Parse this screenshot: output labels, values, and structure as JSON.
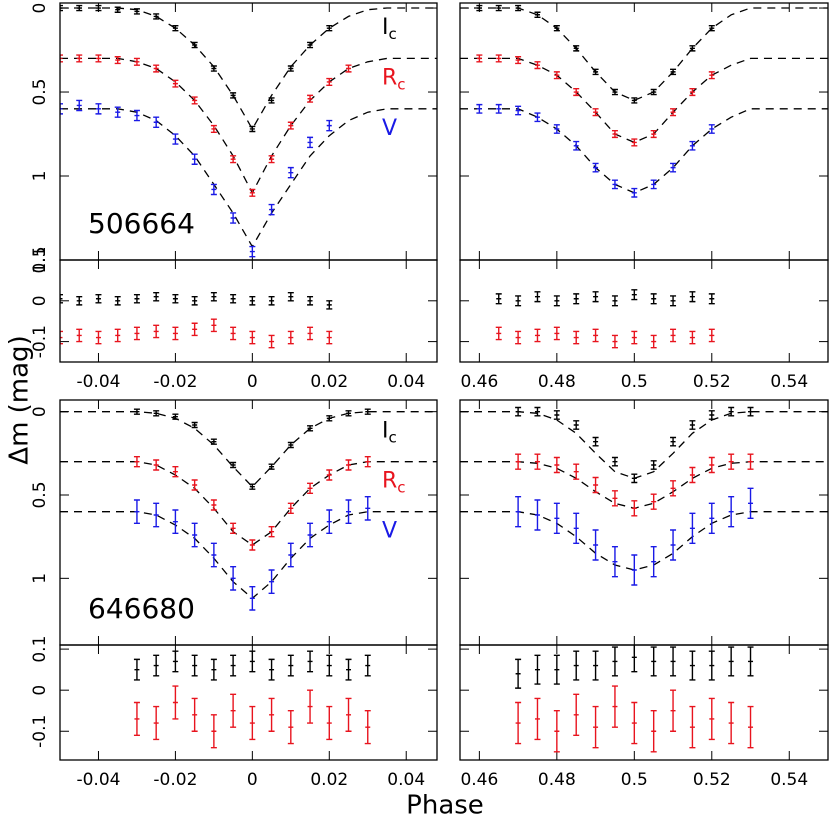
{
  "chart_data": {
    "type": "errorbar",
    "xlabel": "Phase",
    "ylabel": "Δm (mag)",
    "bands": [
      {
        "name": "I",
        "sub": "c",
        "color": "#000000"
      },
      {
        "name": "R",
        "sub": "c",
        "color": "#e8141e"
      },
      {
        "name": "V",
        "sub": null,
        "color": "#1a1ae6"
      }
    ],
    "panels": [
      {
        "label": "506664",
        "legend": true,
        "xlim": [
          -0.05,
          0.048
        ],
        "xticks": [
          -0.04,
          -0.02,
          0,
          0.02,
          0.04
        ],
        "x": [
          -0.05,
          -0.045,
          -0.04,
          -0.035,
          -0.03,
          -0.025,
          -0.02,
          -0.015,
          -0.01,
          -0.005,
          0,
          0.005,
          0.01,
          0.015,
          0.02,
          0.025
        ],
        "model_x": [
          -0.05,
          -0.035,
          -0.03,
          -0.025,
          -0.02,
          -0.015,
          -0.01,
          -0.005,
          0,
          0.005,
          0.01,
          0.015,
          0.02,
          0.025,
          0.03,
          0.035,
          0.048
        ],
        "main": {
          "ylim": [
            1.5,
            -0.03
          ],
          "yticks": [
            0,
            0.5,
            1,
            1.5
          ],
          "series": [
            {
              "values": [
                0,
                0,
                0,
                0.01,
                0.02,
                0.05,
                0.12,
                0.22,
                0.36,
                0.52,
                0.72,
                0.55,
                0.36,
                0.22,
                0.12,
                null
              ],
              "error": 0.015,
              "model": [
                0,
                0,
                0.01,
                0.05,
                0.12,
                0.22,
                0.35,
                0.52,
                0.72,
                0.52,
                0.35,
                0.22,
                0.12,
                0.05,
                0.01,
                0,
                0
              ]
            },
            {
              "values": [
                0.3,
                0.3,
                0.3,
                0.31,
                0.32,
                0.36,
                0.45,
                0.55,
                0.72,
                0.9,
                1.1,
                0.9,
                0.7,
                0.54,
                0.44,
                0.36
              ],
              "error": 0.02,
              "model": [
                0.3,
                0.3,
                0.32,
                0.36,
                0.44,
                0.55,
                0.7,
                0.88,
                1.1,
                0.88,
                0.7,
                0.55,
                0.44,
                0.36,
                0.32,
                0.3,
                0.3
              ]
            },
            {
              "values": [
                0.6,
                0.58,
                0.6,
                0.62,
                0.64,
                0.68,
                0.78,
                0.9,
                1.08,
                1.25,
                1.45,
                1.2,
                0.98,
                0.8,
                0.7,
                null
              ],
              "error": 0.03,
              "model": [
                0.6,
                0.6,
                0.62,
                0.67,
                0.76,
                0.88,
                1.05,
                1.22,
                1.42,
                1.22,
                1.05,
                0.88,
                0.76,
                0.67,
                0.62,
                0.6,
                0.6
              ]
            }
          ]
        },
        "residuals": {
          "ylim": [
            -0.15,
            0.1
          ],
          "yticks": [
            0.1,
            0,
            -0.1
          ],
          "series": [
            {
              "values": [
                0.005,
                0,
                0.005,
                0,
                0.005,
                0.01,
                0.005,
                0,
                0.01,
                0.005,
                0,
                0,
                0.01,
                0,
                -0.01,
                null
              ],
              "error": 0.01
            },
            {
              "values": [
                -0.09,
                -0.085,
                -0.09,
                -0.085,
                -0.08,
                -0.075,
                -0.08,
                -0.07,
                -0.06,
                -0.08,
                -0.09,
                -0.1,
                -0.09,
                -0.08,
                -0.09,
                null
              ],
              "error": 0.015
            }
          ]
        }
      },
      {
        "label": null,
        "legend": false,
        "xlim": [
          0.455,
          0.55
        ],
        "xticks": [
          0.46,
          0.48,
          0.5,
          0.52,
          0.54
        ],
        "x": [
          0.46,
          0.465,
          0.47,
          0.475,
          0.48,
          0.485,
          0.49,
          0.495,
          0.5,
          0.505,
          0.51,
          0.515,
          0.52,
          0.525
        ],
        "model_x": [
          0.455,
          0.47,
          0.475,
          0.48,
          0.485,
          0.49,
          0.495,
          0.5,
          0.505,
          0.51,
          0.515,
          0.52,
          0.525,
          0.53,
          0.55
        ],
        "main": {
          "ylim": [
            1.5,
            -0.03
          ],
          "yticks": [
            0,
            0.5,
            1,
            1.5
          ],
          "series": [
            {
              "values": [
                0,
                0,
                0,
                0.04,
                0.12,
                0.24,
                0.38,
                0.5,
                0.55,
                0.5,
                0.38,
                0.24,
                0.12,
                null
              ],
              "error": 0.015,
              "model": [
                0,
                0,
                0.04,
                0.12,
                0.24,
                0.38,
                0.5,
                0.55,
                0.5,
                0.38,
                0.24,
                0.12,
                0.04,
                0,
                0
              ]
            },
            {
              "values": [
                0.3,
                0.3,
                0.31,
                0.34,
                0.4,
                0.5,
                0.62,
                0.75,
                0.8,
                0.75,
                0.62,
                0.5,
                0.4,
                null
              ],
              "error": 0.02,
              "model": [
                0.3,
                0.3,
                0.34,
                0.4,
                0.5,
                0.62,
                0.75,
                0.8,
                0.75,
                0.62,
                0.5,
                0.4,
                0.34,
                0.3,
                0.3
              ]
            },
            {
              "values": [
                0.6,
                0.6,
                0.61,
                0.65,
                0.72,
                0.82,
                0.95,
                1.05,
                1.1,
                1.05,
                0.95,
                0.82,
                0.72,
                null
              ],
              "error": 0.025,
              "model": [
                0.6,
                0.6,
                0.65,
                0.72,
                0.82,
                0.95,
                1.05,
                1.1,
                1.05,
                0.95,
                0.82,
                0.72,
                0.65,
                0.6,
                0.6
              ]
            }
          ]
        },
        "residuals": {
          "ylim": [
            -0.15,
            0.1
          ],
          "yticks": [
            0.1,
            0,
            -0.1
          ],
          "series": [
            {
              "values": [
                null,
                0.005,
                0,
                0.01,
                0,
                0.005,
                0.01,
                0,
                0.015,
                0.005,
                0,
                0.01,
                0.005,
                null
              ],
              "error": 0.012
            },
            {
              "values": [
                null,
                -0.08,
                -0.09,
                -0.085,
                -0.08,
                -0.09,
                -0.085,
                -0.1,
                -0.09,
                -0.1,
                -0.085,
                -0.09,
                -0.085,
                null
              ],
              "error": 0.015
            }
          ]
        }
      },
      {
        "label": "646680",
        "legend": true,
        "xlim": [
          -0.05,
          0.048
        ],
        "xticks": [
          -0.04,
          -0.02,
          0,
          0.02,
          0.04
        ],
        "x": [
          -0.03,
          -0.025,
          -0.02,
          -0.015,
          -0.01,
          -0.005,
          0,
          0.005,
          0.01,
          0.015,
          0.02,
          0.025,
          0.03
        ],
        "model_x": [
          -0.05,
          -0.03,
          -0.025,
          -0.02,
          -0.015,
          -0.01,
          -0.005,
          0,
          0.005,
          0.01,
          0.015,
          0.02,
          0.025,
          0.03,
          0.048
        ],
        "main": {
          "ylim": [
            1.4,
            -0.07
          ],
          "yticks": [
            0,
            0.5,
            1
          ],
          "series": [
            {
              "values": [
                0,
                0.01,
                0.03,
                0.08,
                0.18,
                0.32,
                0.45,
                0.33,
                0.2,
                0.1,
                0.04,
                0.01,
                0
              ],
              "error": 0.015,
              "model": [
                0,
                0,
                0.01,
                0.04,
                0.1,
                0.2,
                0.33,
                0.45,
                0.33,
                0.2,
                0.1,
                0.04,
                0.01,
                0,
                0
              ]
            },
            {
              "values": [
                0.3,
                0.32,
                0.36,
                0.44,
                0.56,
                0.7,
                0.8,
                0.72,
                0.58,
                0.46,
                0.38,
                0.32,
                0.3
              ],
              "error": 0.03,
              "model": [
                0.3,
                0.3,
                0.32,
                0.38,
                0.46,
                0.58,
                0.72,
                0.8,
                0.72,
                0.58,
                0.46,
                0.38,
                0.32,
                0.3,
                0.3
              ]
            },
            {
              "values": [
                0.6,
                0.62,
                0.66,
                0.74,
                0.86,
                1.0,
                1.12,
                1.02,
                0.86,
                0.74,
                0.66,
                0.6,
                0.58
              ],
              "error": 0.07,
              "model": [
                0.6,
                0.6,
                0.62,
                0.68,
                0.76,
                0.88,
                1.02,
                1.12,
                1.02,
                0.88,
                0.76,
                0.68,
                0.62,
                0.6,
                0.6
              ]
            }
          ]
        },
        "residuals": {
          "ylim": [
            -0.17,
            0.11
          ],
          "yticks": [
            0.1,
            0,
            -0.1
          ],
          "series": [
            {
              "values": [
                0.05,
                0.06,
                0.07,
                0.06,
                0.05,
                0.06,
                0.07,
                0.05,
                0.06,
                0.07,
                0.06,
                0.05,
                0.06
              ],
              "error": 0.025
            },
            {
              "values": [
                -0.07,
                -0.08,
                -0.03,
                -0.06,
                -0.1,
                -0.05,
                -0.08,
                -0.06,
                -0.09,
                -0.04,
                -0.08,
                -0.06,
                -0.09
              ],
              "error": 0.04
            }
          ]
        }
      },
      {
        "label": null,
        "legend": false,
        "xlim": [
          0.455,
          0.55
        ],
        "xticks": [
          0.46,
          0.48,
          0.5,
          0.52,
          0.54
        ],
        "x": [
          0.47,
          0.475,
          0.48,
          0.485,
          0.49,
          0.495,
          0.5,
          0.505,
          0.51,
          0.515,
          0.52,
          0.525,
          0.53
        ],
        "model_x": [
          0.455,
          0.47,
          0.475,
          0.48,
          0.485,
          0.49,
          0.495,
          0.5,
          0.505,
          0.51,
          0.515,
          0.52,
          0.525,
          0.53,
          0.55
        ],
        "main": {
          "ylim": [
            1.4,
            -0.07
          ],
          "yticks": [
            0,
            0.5,
            1
          ],
          "series": [
            {
              "values": [
                0,
                0,
                0.02,
                0.08,
                0.18,
                0.3,
                0.4,
                0.32,
                0.18,
                0.08,
                0.02,
                0,
                0
              ],
              "error": 0.025,
              "model": [
                0,
                0,
                0.01,
                0.05,
                0.13,
                0.25,
                0.36,
                0.4,
                0.36,
                0.25,
                0.13,
                0.05,
                0.01,
                0,
                0
              ]
            },
            {
              "values": [
                0.3,
                0.3,
                0.32,
                0.36,
                0.44,
                0.52,
                0.58,
                0.54,
                0.46,
                0.38,
                0.32,
                0.3,
                0.3
              ],
              "error": 0.045,
              "model": [
                0.3,
                0.3,
                0.31,
                0.34,
                0.4,
                0.48,
                0.55,
                0.58,
                0.55,
                0.48,
                0.4,
                0.34,
                0.31,
                0.3,
                0.3
              ]
            },
            {
              "values": [
                0.6,
                0.62,
                0.64,
                0.7,
                0.8,
                0.9,
                0.95,
                0.9,
                0.8,
                0.7,
                0.64,
                0.6,
                0.55
              ],
              "error": 0.09,
              "model": [
                0.6,
                0.6,
                0.62,
                0.67,
                0.75,
                0.85,
                0.92,
                0.95,
                0.92,
                0.85,
                0.75,
                0.67,
                0.62,
                0.6,
                0.6
              ]
            }
          ]
        },
        "residuals": {
          "ylim": [
            -0.17,
            0.11
          ],
          "yticks": [
            0.1,
            0,
            -0.1
          ],
          "series": [
            {
              "values": [
                0.04,
                0.05,
                0.05,
                0.06,
                0.06,
                0.07,
                0.08,
                0.07,
                0.07,
                0.06,
                0.06,
                0.07,
                0.07
              ],
              "error": 0.035
            },
            {
              "values": [
                -0.08,
                -0.07,
                -0.1,
                -0.06,
                -0.09,
                -0.04,
                -0.08,
                -0.1,
                -0.05,
                -0.09,
                -0.07,
                -0.08,
                -0.09
              ],
              "error": 0.05
            }
          ]
        }
      }
    ]
  }
}
